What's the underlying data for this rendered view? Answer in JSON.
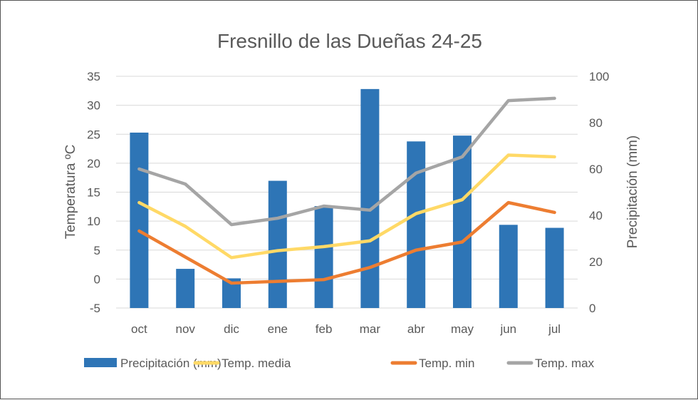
{
  "chart_data": {
    "type": "bar+line",
    "title": "Fresnillo de las Dueñas 24-25",
    "categories": [
      "oct",
      "nov",
      "dic",
      "ene",
      "feb",
      "mar",
      "abr",
      "may",
      "jun",
      "jul"
    ],
    "ylabel_left": "Temperatura ºC",
    "ylabel_right": "Precipitación (mm)",
    "ylim_left": [
      -5,
      35
    ],
    "yticks_left": [
      -5,
      0,
      5,
      10,
      15,
      20,
      25,
      30,
      35
    ],
    "ylim_right": [
      0,
      100
    ],
    "yticks_right": [
      0,
      20,
      40,
      60,
      80,
      100
    ],
    "grid": true,
    "legend_position": "bottom",
    "series": [
      {
        "name": "Precipitación (mm)",
        "type": "bar",
        "axis": "right",
        "color": "#2E75B6",
        "values": [
          75.7,
          16.9,
          12.8,
          54.9,
          44.0,
          94.5,
          71.9,
          74.4,
          35.9,
          34.6
        ]
      },
      {
        "name": "Temp. media",
        "type": "line",
        "axis": "left",
        "color": "#FFD966",
        "values": [
          13.2,
          9.1,
          3.7,
          4.9,
          5.6,
          6.6,
          11.3,
          13.7,
          21.4,
          21.1
        ]
      },
      {
        "name": "Temp. min",
        "type": "line",
        "axis": "left",
        "color": "#ED7D31",
        "values": [
          8.3,
          3.8,
          -0.7,
          -0.4,
          -0.1,
          2.0,
          5.0,
          6.4,
          13.2,
          11.5
        ]
      },
      {
        "name": "Temp. max",
        "type": "line",
        "axis": "left",
        "color": "#A5A5A5",
        "values": [
          19.0,
          16.4,
          9.4,
          10.5,
          12.6,
          11.9,
          18.3,
          21.1,
          30.8,
          31.2
        ]
      }
    ]
  }
}
